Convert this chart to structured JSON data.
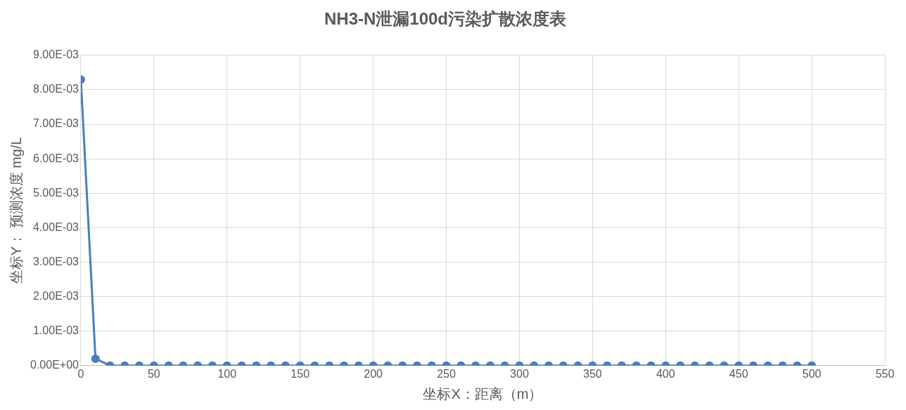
{
  "chart_data": {
    "type": "line",
    "title": "NH3-N泄漏100d污染扩散浓度表",
    "xlabel": "坐标X：距离（m）",
    "ylabel": "坐标Y： 预测浓度 mg/L",
    "x": [
      0,
      10,
      20,
      30,
      40,
      50,
      60,
      70,
      80,
      90,
      100,
      110,
      120,
      130,
      140,
      150,
      160,
      170,
      180,
      190,
      200,
      210,
      220,
      230,
      240,
      250,
      260,
      270,
      280,
      290,
      300,
      310,
      320,
      330,
      340,
      350,
      360,
      370,
      380,
      390,
      400,
      410,
      420,
      430,
      440,
      450,
      460,
      470,
      480,
      490,
      500
    ],
    "series": [
      {
        "color": "#4a7ebb",
        "values": [
          0.0083,
          0.0002,
          0,
          0,
          0,
          0,
          0,
          0,
          0,
          0,
          0,
          0,
          0,
          0,
          0,
          0,
          0,
          0,
          0,
          0,
          0,
          0,
          0,
          0,
          0,
          0,
          0,
          0,
          0,
          0,
          0,
          0,
          0,
          0,
          0,
          0,
          0,
          0,
          0,
          0,
          0,
          0,
          0,
          0,
          0,
          0,
          0,
          0,
          0,
          0,
          0
        ]
      }
    ],
    "xlim": [
      0,
      550
    ],
    "xticks": [
      0,
      50,
      100,
      150,
      200,
      250,
      300,
      350,
      400,
      450,
      500,
      550
    ],
    "ylim": [
      0,
      0.009
    ],
    "yticks": [
      {
        "value": 0,
        "label": "0.00E+00"
      },
      {
        "value": 0.001,
        "label": "1.00E-03"
      },
      {
        "value": 0.002,
        "label": "2.00E-03"
      },
      {
        "value": 0.003,
        "label": "3.00E-03"
      },
      {
        "value": 0.004,
        "label": "4.00E-03"
      },
      {
        "value": 0.005,
        "label": "5.00E-03"
      },
      {
        "value": 0.006,
        "label": "6.00E-03"
      },
      {
        "value": 0.007,
        "label": "7.00E-03"
      },
      {
        "value": 0.008,
        "label": "8.00E-03"
      },
      {
        "value": 0.009,
        "label": "9.00E-03"
      }
    ],
    "grid": true,
    "marker": "circle",
    "legend": false
  }
}
